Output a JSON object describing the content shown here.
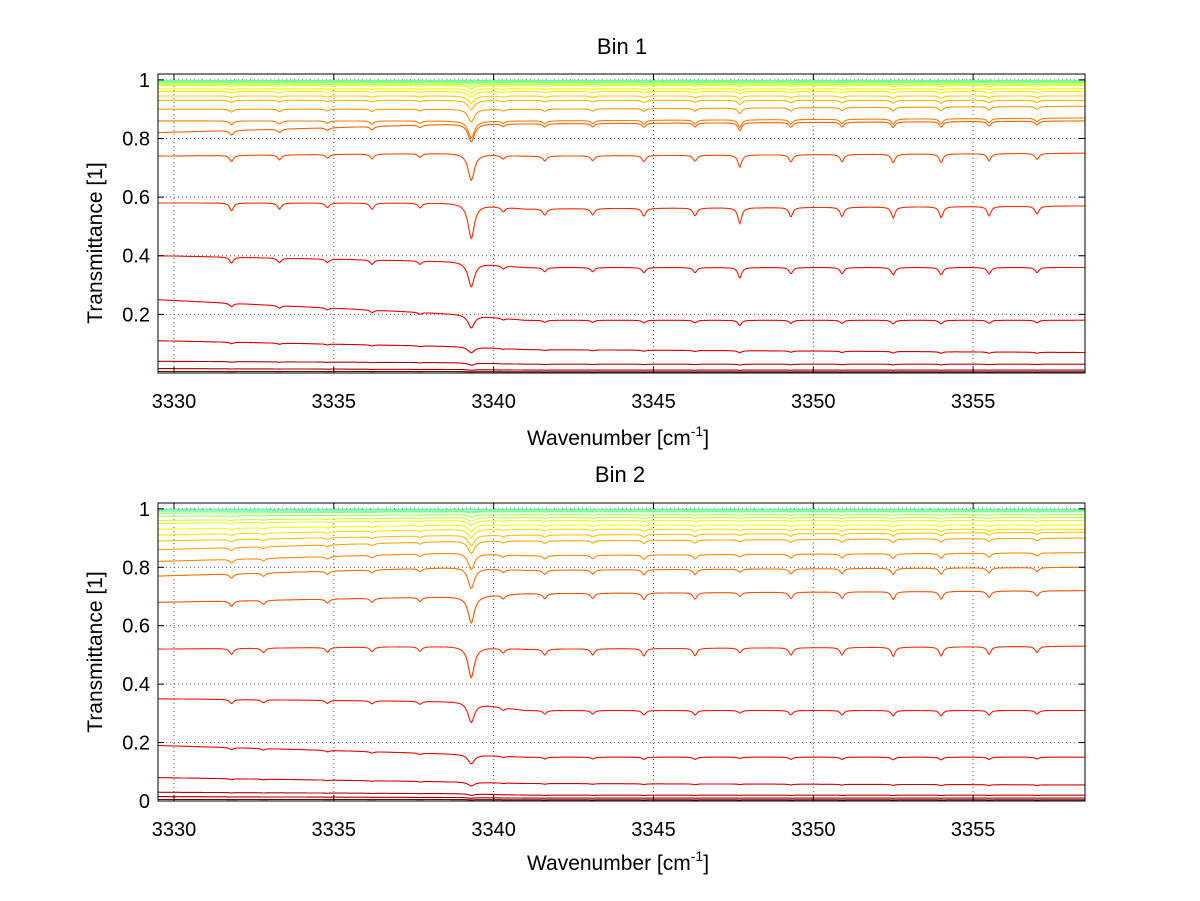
{
  "chart_data": [
    {
      "type": "line",
      "title": "Bin 1",
      "xlabel": "Wavenumber [cm",
      "xlabel_sup": "-1",
      "xlabel_end": "]",
      "ylabel": "Transmittance [1]",
      "xlim": [
        3329.5,
        3358.5
      ],
      "ylim": [
        0,
        1.02
      ],
      "xticks": [
        3330,
        3335,
        3340,
        3345,
        3350,
        3355
      ],
      "xtick_labels": [
        "3330",
        "3335",
        "3340",
        "3345",
        "3350",
        "3355"
      ],
      "yticks": [
        0.2,
        0.4,
        0.6,
        0.8,
        1
      ],
      "ytick_labels": [
        "0.2",
        "0.4",
        "0.6",
        "0.8",
        "1"
      ],
      "grid": true,
      "colormap": "jet",
      "series_baselines": {
        "x": [
          3329.5,
          3339.0,
          3341.0,
          3358.5
        ],
        "levels": [
          [
            1.0,
            1.0,
            1.0,
            1.0
          ],
          [
            0.998,
            0.998,
            0.998,
            0.998
          ],
          [
            0.995,
            0.995,
            0.995,
            0.995
          ],
          [
            0.99,
            0.99,
            0.99,
            0.99
          ],
          [
            0.985,
            0.985,
            0.985,
            0.985
          ],
          [
            0.98,
            0.98,
            0.98,
            0.98
          ],
          [
            0.97,
            0.97,
            0.97,
            0.97
          ],
          [
            0.96,
            0.96,
            0.96,
            0.96
          ],
          [
            0.945,
            0.945,
            0.945,
            0.945
          ],
          [
            0.93,
            0.93,
            0.93,
            0.93
          ],
          [
            0.9,
            0.9,
            0.9,
            0.91
          ],
          [
            0.86,
            0.86,
            0.86,
            0.87
          ],
          [
            0.82,
            0.85,
            0.85,
            0.86
          ],
          [
            0.74,
            0.75,
            0.74,
            0.75
          ],
          [
            0.58,
            0.58,
            0.56,
            0.57
          ],
          [
            0.4,
            0.38,
            0.36,
            0.36
          ],
          [
            0.25,
            0.2,
            0.18,
            0.18
          ],
          [
            0.11,
            0.09,
            0.08,
            0.07
          ],
          [
            0.04,
            0.035,
            0.03,
            0.03
          ],
          [
            0.015,
            0.012,
            0.01,
            0.01
          ],
          [
            0.005,
            0.005,
            0.004,
            0.004
          ]
        ]
      },
      "absorption_lines": [
        {
          "x": 3331.8,
          "rel_depth": 0.05
        },
        {
          "x": 3333.3,
          "rel_depth": 0.04
        },
        {
          "x": 3334.8,
          "rel_depth": 0.03
        },
        {
          "x": 3336.2,
          "rel_depth": 0.04
        },
        {
          "x": 3337.7,
          "rel_depth": 0.03
        },
        {
          "x": 3339.3,
          "rel_depth": 0.22
        },
        {
          "x": 3340.3,
          "rel_depth": 0.03
        },
        {
          "x": 3341.6,
          "rel_depth": 0.04
        },
        {
          "x": 3343.1,
          "rel_depth": 0.04
        },
        {
          "x": 3344.7,
          "rel_depth": 0.05
        },
        {
          "x": 3346.3,
          "rel_depth": 0.05
        },
        {
          "x": 3347.7,
          "rel_depth": 0.1
        },
        {
          "x": 3349.3,
          "rel_depth": 0.06
        },
        {
          "x": 3350.9,
          "rel_depth": 0.06
        },
        {
          "x": 3352.5,
          "rel_depth": 0.07
        },
        {
          "x": 3354.0,
          "rel_depth": 0.07
        },
        {
          "x": 3355.5,
          "rel_depth": 0.06
        },
        {
          "x": 3357.0,
          "rel_depth": 0.05
        }
      ]
    },
    {
      "type": "line",
      "title": "Bin 2",
      "xlabel": "Wavenumber [cm",
      "xlabel_sup": "-1",
      "xlabel_end": "]",
      "ylabel": "Transmittance [1]",
      "xlim": [
        3329.5,
        3358.5
      ],
      "ylim": [
        0,
        1.02
      ],
      "xticks": [
        3330,
        3335,
        3340,
        3345,
        3350,
        3355
      ],
      "xtick_labels": [
        "3330",
        "3335",
        "3340",
        "3345",
        "3350",
        "3355"
      ],
      "yticks": [
        0,
        0.2,
        0.4,
        0.6,
        0.8,
        1
      ],
      "ytick_labels": [
        "0",
        "0.2",
        "0.4",
        "0.6",
        "0.8",
        "1"
      ],
      "grid": true,
      "colormap": "jet",
      "series_baselines": {
        "x": [
          3329.5,
          3339.0,
          3341.0,
          3358.5
        ],
        "levels": [
          [
            1.0,
            1.0,
            1.0,
            1.0
          ],
          [
            0.995,
            0.995,
            0.995,
            0.995
          ],
          [
            0.985,
            0.99,
            0.99,
            0.99
          ],
          [
            0.975,
            0.98,
            0.98,
            0.98
          ],
          [
            0.96,
            0.97,
            0.97,
            0.97
          ],
          [
            0.95,
            0.96,
            0.96,
            0.96
          ],
          [
            0.93,
            0.945,
            0.945,
            0.945
          ],
          [
            0.91,
            0.93,
            0.93,
            0.93
          ],
          [
            0.89,
            0.91,
            0.91,
            0.92
          ],
          [
            0.86,
            0.89,
            0.89,
            0.9
          ],
          [
            0.82,
            0.85,
            0.84,
            0.85
          ],
          [
            0.77,
            0.8,
            0.79,
            0.8
          ],
          [
            0.68,
            0.7,
            0.71,
            0.72
          ],
          [
            0.52,
            0.53,
            0.52,
            0.53
          ],
          [
            0.35,
            0.34,
            0.31,
            0.31
          ],
          [
            0.19,
            0.16,
            0.15,
            0.15
          ],
          [
            0.08,
            0.065,
            0.06,
            0.055
          ],
          [
            0.03,
            0.025,
            0.02,
            0.02
          ],
          [
            0.015,
            0.012,
            0.01,
            0.01
          ],
          [
            0.005,
            0.005,
            0.004,
            0.004
          ]
        ]
      },
      "absorption_lines": [
        {
          "x": 3331.8,
          "rel_depth": 0.04
        },
        {
          "x": 3332.8,
          "rel_depth": 0.03
        },
        {
          "x": 3334.8,
          "rel_depth": 0.03
        },
        {
          "x": 3336.2,
          "rel_depth": 0.03
        },
        {
          "x": 3337.7,
          "rel_depth": 0.03
        },
        {
          "x": 3339.3,
          "rel_depth": 0.2
        },
        {
          "x": 3340.3,
          "rel_depth": 0.03
        },
        {
          "x": 3341.6,
          "rel_depth": 0.04
        },
        {
          "x": 3343.1,
          "rel_depth": 0.04
        },
        {
          "x": 3344.7,
          "rel_depth": 0.05
        },
        {
          "x": 3346.3,
          "rel_depth": 0.05
        },
        {
          "x": 3347.7,
          "rel_depth": 0.03
        },
        {
          "x": 3349.3,
          "rel_depth": 0.05
        },
        {
          "x": 3350.9,
          "rel_depth": 0.05
        },
        {
          "x": 3352.5,
          "rel_depth": 0.06
        },
        {
          "x": 3354.0,
          "rel_depth": 0.06
        },
        {
          "x": 3355.5,
          "rel_depth": 0.05
        },
        {
          "x": 3357.0,
          "rel_depth": 0.04
        }
      ]
    }
  ]
}
